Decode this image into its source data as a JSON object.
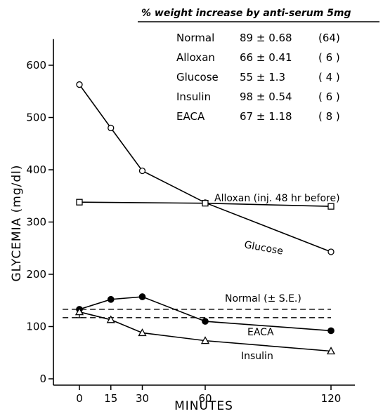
{
  "chart_data": {
    "type": "line",
    "xlabel": "MINUTES",
    "ylabel": "GLYCEMIA (mg/dl)",
    "xlim": [
      -12,
      135
    ],
    "ylim": [
      0,
      650
    ],
    "x_ticks": [
      0,
      15,
      30,
      60,
      120
    ],
    "y_ticks": [
      0,
      100,
      200,
      300,
      400,
      500,
      600
    ],
    "grid": false,
    "series": [
      {
        "name": "Glucose",
        "marker": "open-circle",
        "x": [
          0,
          15,
          30,
          60,
          120
        ],
        "y": [
          563,
          480,
          398,
          337,
          243
        ]
      },
      {
        "name": "Alloxan (inj. 48 hr before)",
        "marker": "open-square",
        "x": [
          0,
          60,
          120
        ],
        "y": [
          338,
          336,
          330
        ]
      },
      {
        "name": "EACA",
        "marker": "filled-circle",
        "x": [
          0,
          15,
          30,
          60,
          120
        ],
        "y": [
          133,
          152,
          157,
          110,
          92
        ]
      },
      {
        "name": "Insulin",
        "marker": "open-triangle",
        "x": [
          0,
          15,
          30,
          60,
          120
        ],
        "y": [
          128,
          113,
          88,
          73,
          53
        ]
      }
    ],
    "normal_band": {
      "label": "Normal (± S.E.)",
      "upper": 133,
      "lower": 117,
      "start_value": 130
    },
    "annotations": {
      "glucose": "Glucose",
      "alloxan": "Alloxan (inj. 48 hr before)",
      "normal": "Normal (± S.E.)",
      "eaca": "EACA",
      "insulin": "Insulin"
    },
    "legend_table": {
      "title": "% weight increase by anti-serum 5mg",
      "rows": [
        {
          "label": "Normal",
          "value": "89 ± 0.68",
          "n": "(64)"
        },
        {
          "label": "Alloxan",
          "value": "66 ± 0.41",
          "n": "( 6 )"
        },
        {
          "label": "Glucose",
          "value": "55 ± 1.3",
          "n": "( 4 )"
        },
        {
          "label": "Insulin",
          "value": "98 ± 0.54",
          "n": "( 6 )"
        },
        {
          "label": "EACA",
          "value": "67 ± 1.18",
          "n": "( 8 )"
        }
      ]
    }
  }
}
